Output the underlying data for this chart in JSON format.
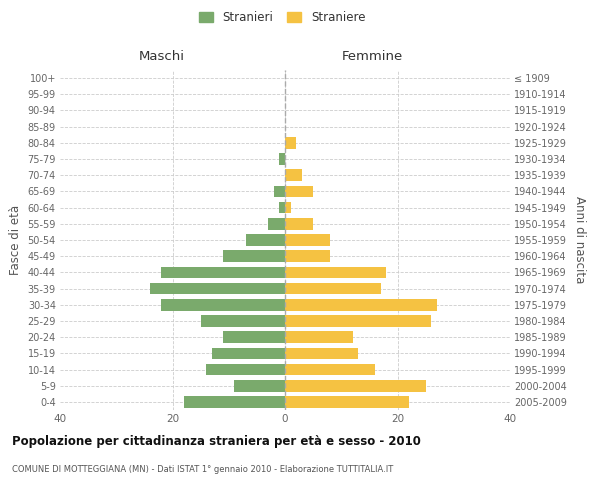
{
  "age_groups": [
    "0-4",
    "5-9",
    "10-14",
    "15-19",
    "20-24",
    "25-29",
    "30-34",
    "35-39",
    "40-44",
    "45-49",
    "50-54",
    "55-59",
    "60-64",
    "65-69",
    "70-74",
    "75-79",
    "80-84",
    "85-89",
    "90-94",
    "95-99",
    "100+"
  ],
  "birth_years": [
    "2005-2009",
    "2000-2004",
    "1995-1999",
    "1990-1994",
    "1985-1989",
    "1980-1984",
    "1975-1979",
    "1970-1974",
    "1965-1969",
    "1960-1964",
    "1955-1959",
    "1950-1954",
    "1945-1949",
    "1940-1944",
    "1935-1939",
    "1930-1934",
    "1925-1929",
    "1920-1924",
    "1915-1919",
    "1910-1914",
    "≤ 1909"
  ],
  "males": [
    18,
    9,
    14,
    13,
    11,
    15,
    22,
    24,
    22,
    11,
    7,
    3,
    1,
    2,
    0,
    1,
    0,
    0,
    0,
    0,
    0
  ],
  "females": [
    22,
    25,
    16,
    13,
    12,
    26,
    27,
    17,
    18,
    8,
    8,
    5,
    1,
    5,
    3,
    0,
    2,
    0,
    0,
    0,
    0
  ],
  "male_color": "#7aaa6c",
  "female_color": "#f5c242",
  "title": "Popolazione per cittadinanza straniera per età e sesso - 2010",
  "subtitle": "COMUNE DI MOTTEGGIANA (MN) - Dati ISTAT 1° gennaio 2010 - Elaborazione TUTTITALIA.IT",
  "left_header": "Maschi",
  "right_header": "Femmine",
  "left_yaxis_label": "Fasce di età",
  "right_yaxis_label": "Anni di nascita",
  "legend_stranieri": "Stranieri",
  "legend_straniere": "Straniere",
  "xlim": 40,
  "background_color": "#ffffff",
  "grid_color": "#cccccc"
}
